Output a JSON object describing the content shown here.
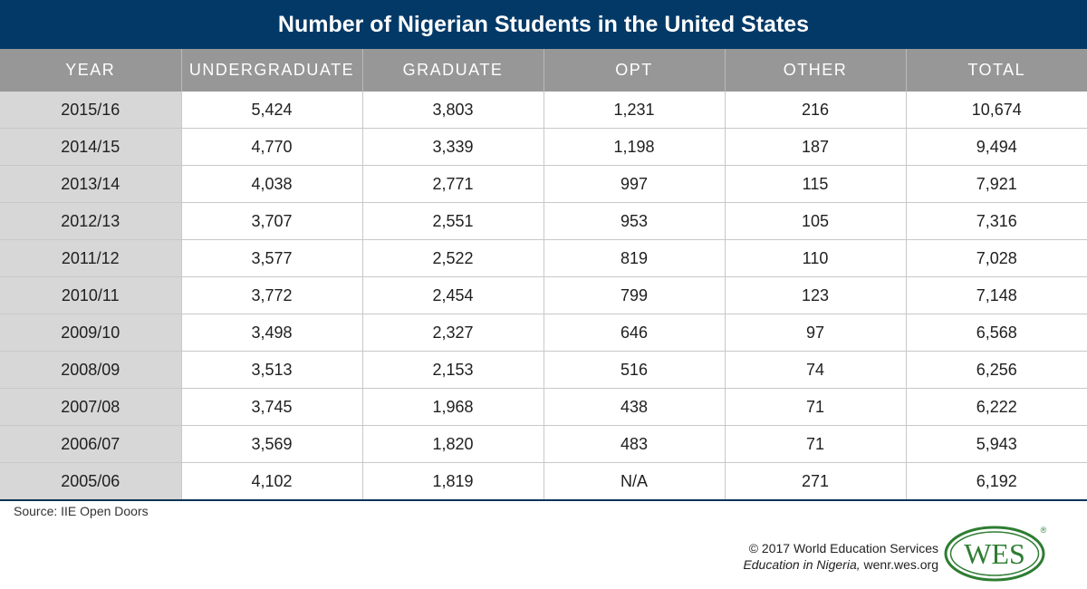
{
  "title": "Number of Nigerian Students in the United States",
  "chart_data": {
    "type": "table",
    "title": "Number of Nigerian Students in the United States",
    "columns": [
      "YEAR",
      "UNDERGRADUATE",
      "GRADUATE",
      "OPT",
      "OTHER",
      "TOTAL"
    ],
    "rows": [
      [
        "2015/16",
        "5,424",
        "3,803",
        "1,231",
        "216",
        "10,674"
      ],
      [
        "2014/15",
        "4,770",
        "3,339",
        "1,198",
        "187",
        "9,494"
      ],
      [
        "2013/14",
        "4,038",
        "2,771",
        "997",
        "115",
        "7,921"
      ],
      [
        "2012/13",
        "3,707",
        "2,551",
        "953",
        "105",
        "7,316"
      ],
      [
        "2011/12",
        "3,577",
        "2,522",
        "819",
        "110",
        "7,028"
      ],
      [
        "2010/11",
        "3,772",
        "2,454",
        "799",
        "123",
        "7,148"
      ],
      [
        "2009/10",
        "3,498",
        "2,327",
        "646",
        "97",
        "6,568"
      ],
      [
        "2008/09",
        "3,513",
        "2,153",
        "516",
        "74",
        "6,256"
      ],
      [
        "2007/08",
        "3,745",
        "1,968",
        "438",
        "71",
        "6,222"
      ],
      [
        "2006/07",
        "3,569",
        "1,820",
        "483",
        "71",
        "5,943"
      ],
      [
        "2005/06",
        "4,102",
        "1,819",
        "N/A",
        "271",
        "6,192"
      ]
    ]
  },
  "source": "Source: IIE Open Doors",
  "credit": {
    "line1": "© 2017 World Education Services",
    "line2_italic": "Education in Nigeria,",
    "line2_rest": " wenr.wes.org"
  },
  "logo": {
    "text": "WES",
    "mark": "®"
  },
  "colors": {
    "header_navy": "#023967",
    "column_header_gray": "#979797",
    "year_column_gray": "#d7d7d7",
    "logo_green": "#2e7d32"
  }
}
